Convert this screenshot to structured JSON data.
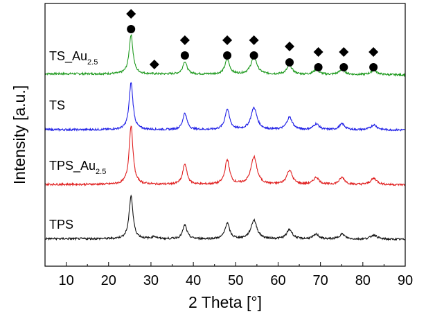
{
  "chart_data": {
    "type": "line",
    "xlabel": "2 Theta [°]",
    "ylabel": "Intensity [a.u.]",
    "xlim": [
      5,
      90
    ],
    "xticks": [
      10,
      20,
      30,
      40,
      50,
      60,
      70,
      80,
      90
    ],
    "yticks_shown": false,
    "grid": false,
    "series": [
      {
        "name": "TS_Au",
        "name_subscript": "2.5",
        "color": "#1f9a1f",
        "offset": 3.0,
        "baseline": 0.05,
        "peaks": [
          {
            "x": 25.3,
            "h": 1.0,
            "w": 0.55
          },
          {
            "x": 38.0,
            "h": 0.32,
            "w": 0.6
          },
          {
            "x": 48.0,
            "h": 0.38,
            "w": 0.65
          },
          {
            "x": 54.3,
            "h": 0.44,
            "w": 0.85
          },
          {
            "x": 62.7,
            "h": 0.22,
            "w": 0.8
          },
          {
            "x": 69.0,
            "h": 0.12,
            "w": 0.8
          },
          {
            "x": 75.1,
            "h": 0.13,
            "w": 0.8
          },
          {
            "x": 82.6,
            "h": 0.11,
            "w": 0.9
          }
        ]
      },
      {
        "name": "TS",
        "color": "#1e1ee6",
        "offset": 2.0,
        "baseline": 0.02,
        "peaks": [
          {
            "x": 25.3,
            "h": 1.2,
            "w": 0.55
          },
          {
            "x": 38.0,
            "h": 0.42,
            "w": 0.6
          },
          {
            "x": 48.0,
            "h": 0.52,
            "w": 0.65
          },
          {
            "x": 54.3,
            "h": 0.56,
            "w": 0.85
          },
          {
            "x": 62.7,
            "h": 0.32,
            "w": 0.8
          },
          {
            "x": 69.0,
            "h": 0.15,
            "w": 0.8
          },
          {
            "x": 75.1,
            "h": 0.15,
            "w": 0.8
          },
          {
            "x": 82.6,
            "h": 0.13,
            "w": 0.9
          }
        ]
      },
      {
        "name": "TPS_Au",
        "name_subscript": "2.5",
        "color": "#e01e1e",
        "offset": 1.0,
        "baseline": 0.02,
        "peaks": [
          {
            "x": 25.3,
            "h": 1.5,
            "w": 0.55
          },
          {
            "x": 38.0,
            "h": 0.52,
            "w": 0.6
          },
          {
            "x": 48.0,
            "h": 0.62,
            "w": 0.65
          },
          {
            "x": 54.3,
            "h": 0.7,
            "w": 0.85
          },
          {
            "x": 62.7,
            "h": 0.36,
            "w": 0.8
          },
          {
            "x": 69.0,
            "h": 0.18,
            "w": 0.8
          },
          {
            "x": 75.1,
            "h": 0.18,
            "w": 0.8
          },
          {
            "x": 82.6,
            "h": 0.16,
            "w": 0.9
          }
        ]
      },
      {
        "name": "TPS",
        "color": "#111111",
        "offset": 0.0,
        "baseline": 0.03,
        "peaks": [
          {
            "x": 25.3,
            "h": 1.1,
            "w": 0.55
          },
          {
            "x": 30.8,
            "h": 0.06,
            "w": 0.6
          },
          {
            "x": 38.0,
            "h": 0.35,
            "w": 0.6
          },
          {
            "x": 48.0,
            "h": 0.4,
            "w": 0.65
          },
          {
            "x": 54.3,
            "h": 0.48,
            "w": 0.85
          },
          {
            "x": 62.7,
            "h": 0.24,
            "w": 0.8
          },
          {
            "x": 69.0,
            "h": 0.12,
            "w": 0.8
          },
          {
            "x": 75.1,
            "h": 0.13,
            "w": 0.8
          },
          {
            "x": 82.6,
            "h": 0.11,
            "w": 0.9
          }
        ]
      }
    ],
    "markers": [
      {
        "x": 25.3,
        "symbols": [
          "diamond",
          "circle"
        ]
      },
      {
        "x": 30.8,
        "symbols": [
          "diamond"
        ]
      },
      {
        "x": 38.0,
        "symbols": [
          "diamond",
          "circle"
        ]
      },
      {
        "x": 48.0,
        "symbols": [
          "diamond",
          "circle"
        ]
      },
      {
        "x": 54.3,
        "symbols": [
          "diamond",
          "circle"
        ]
      },
      {
        "x": 62.7,
        "symbols": [
          "diamond",
          "circle"
        ]
      },
      {
        "x": 69.5,
        "symbols": [
          "diamond",
          "circle"
        ]
      },
      {
        "x": 75.5,
        "symbols": [
          "diamond",
          "circle"
        ]
      },
      {
        "x": 82.5,
        "symbols": [
          "diamond",
          "circle"
        ]
      }
    ]
  }
}
